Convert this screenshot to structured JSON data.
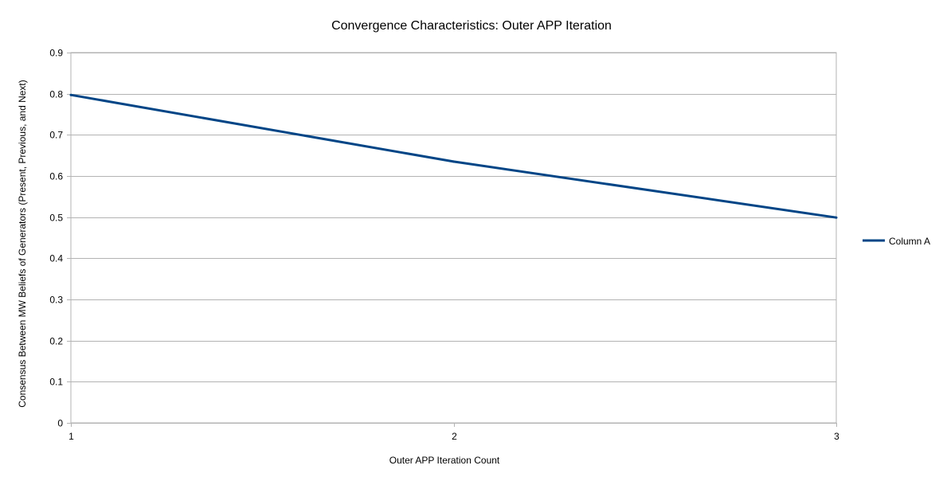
{
  "chart_data": {
    "type": "line",
    "title": "Convergence Characteristics: Outer APP Iteration",
    "xlabel": "Outer APP Iteration Count",
    "ylabel": "Consensus Between MW Beliefs of Generators (Present, Previous, and Next)",
    "x": [
      1,
      2,
      3
    ],
    "x_tick_labels": [
      "1",
      "2",
      "3"
    ],
    "xlim": [
      1,
      3
    ],
    "ylim": [
      0,
      0.9
    ],
    "y_ticks": [
      0,
      0.1,
      0.2,
      0.3,
      0.4,
      0.5,
      0.6,
      0.7,
      0.8,
      0.9
    ],
    "y_tick_labels": [
      "0",
      "0.1",
      "0.2",
      "0.3",
      "0.4",
      "0.5",
      "0.6",
      "0.7",
      "0.8",
      "0.9"
    ],
    "grid": true,
    "legend_position": "right",
    "series": [
      {
        "name": "Column A",
        "color": "#004586",
        "values": [
          0.797,
          0.635,
          0.499
        ]
      }
    ]
  }
}
